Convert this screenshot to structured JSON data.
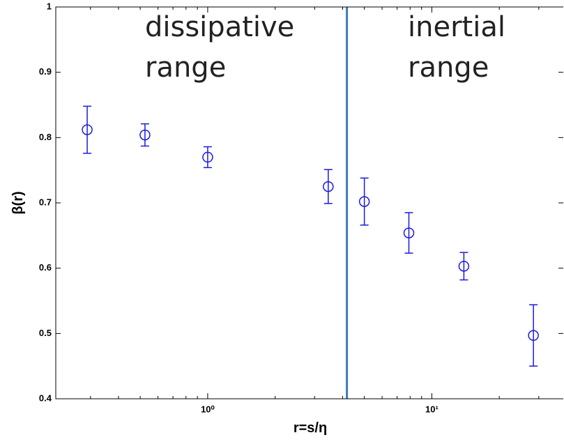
{
  "chart_data": {
    "type": "errorbar-scatter",
    "xlabel": "r=s/η",
    "ylabel": "β(r)",
    "x": [
      0.29,
      0.525,
      1.0,
      3.45,
      5.0,
      7.9,
      13.9,
      28.4
    ],
    "series": [
      {
        "color": "#1a1adc",
        "values": [
          0.812,
          0.804,
          0.77,
          0.725,
          0.702,
          0.654,
          0.603,
          0.497
        ],
        "errors": [
          0.036,
          0.017,
          0.016,
          0.026,
          0.036,
          0.031,
          0.021,
          0.047
        ]
      }
    ],
    "xlog": true,
    "xlim": [
      0.21,
      38.6
    ],
    "ylim": [
      0.4,
      1
    ],
    "xticks": [
      {
        "value": 1,
        "label": "10⁰"
      },
      {
        "value": 10,
        "label": "10¹"
      }
    ],
    "xminorticks": [
      0.3,
      0.4,
      0.5,
      0.6,
      0.7,
      0.8,
      0.9,
      2,
      3,
      4,
      5,
      6,
      7,
      8,
      9,
      20,
      30
    ],
    "yticks": [
      0.4,
      0.5,
      0.6,
      0.7,
      0.8,
      0.9,
      1
    ],
    "divider": {
      "x": 4.18,
      "color": "#3c7ab8"
    },
    "annotations": [
      {
        "lines": [
          "dissipative",
          "range"
        ]
      },
      {
        "lines": [
          "inertial",
          "range"
        ]
      }
    ]
  }
}
